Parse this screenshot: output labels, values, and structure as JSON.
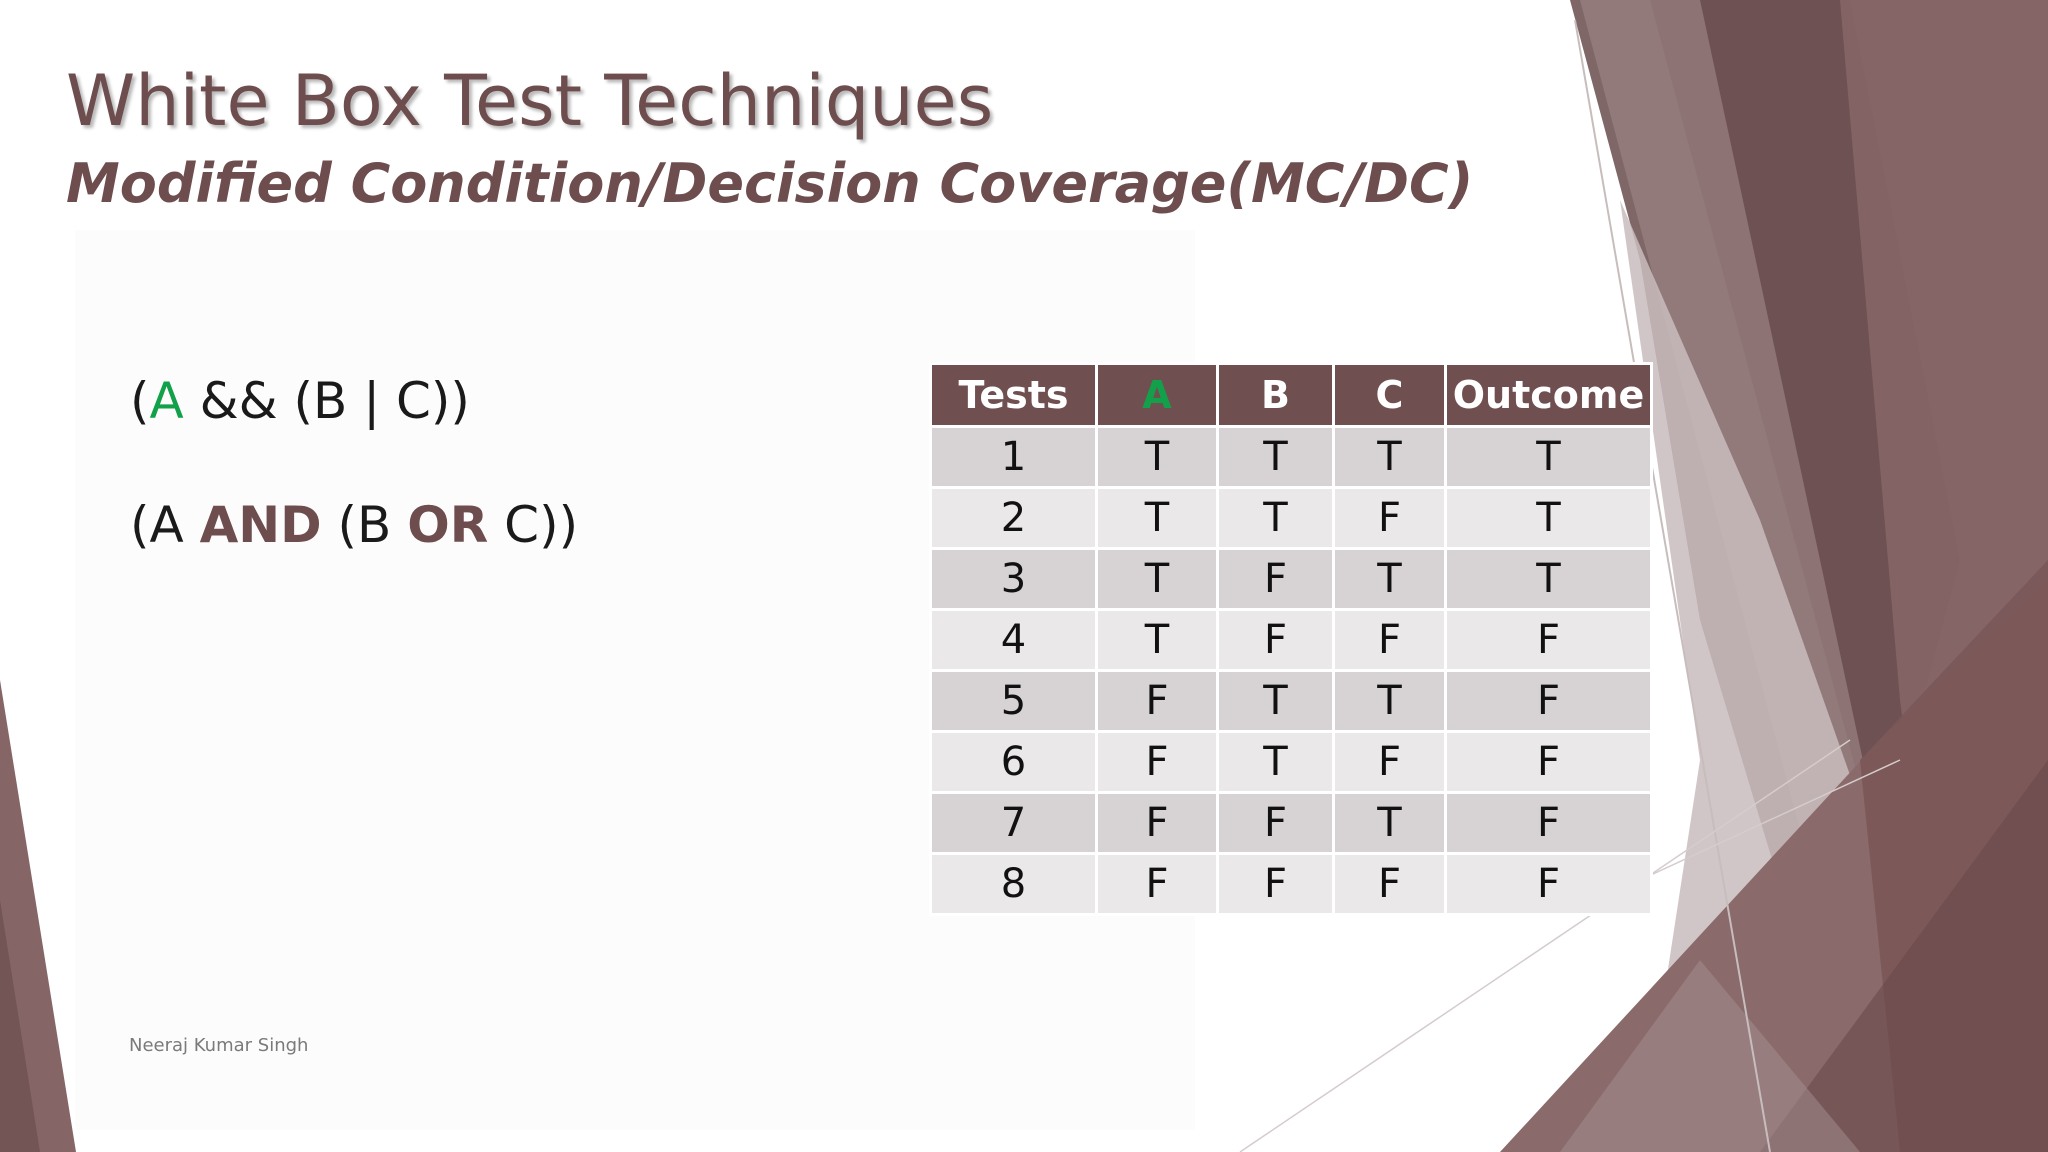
{
  "slide": {
    "title": "White Box Test Techniques",
    "subtitle": "Modified Condition/Decision Coverage(MC/DC)",
    "expression1": {
      "open": "(",
      "a": "A",
      "rest": " && (B | C))"
    },
    "expression2": {
      "part1": "(A ",
      "and": "AND",
      "part2": " (B ",
      "or": "OR",
      "part3": " C))"
    },
    "footer": "Neeraj Kumar Singh"
  },
  "table": {
    "headers": [
      "Tests",
      "A",
      "B",
      "C",
      "Outcome"
    ],
    "rows": [
      [
        "1",
        "T",
        "T",
        "T",
        "T"
      ],
      [
        "2",
        "T",
        "T",
        "F",
        "T"
      ],
      [
        "3",
        "T",
        "F",
        "T",
        "T"
      ],
      [
        "4",
        "T",
        "F",
        "F",
        "F"
      ],
      [
        "5",
        "F",
        "T",
        "T",
        "F"
      ],
      [
        "6",
        "F",
        "T",
        "F",
        "F"
      ],
      [
        "7",
        "F",
        "F",
        "T",
        "F"
      ],
      [
        "8",
        "F",
        "F",
        "F",
        "F"
      ]
    ]
  },
  "colors": {
    "accent": "#6e4d4e",
    "header_bg": "#704f50",
    "highlight_green": "#12a14a",
    "row_odd": "#d7d3d4",
    "row_even": "#ebe8e9"
  }
}
